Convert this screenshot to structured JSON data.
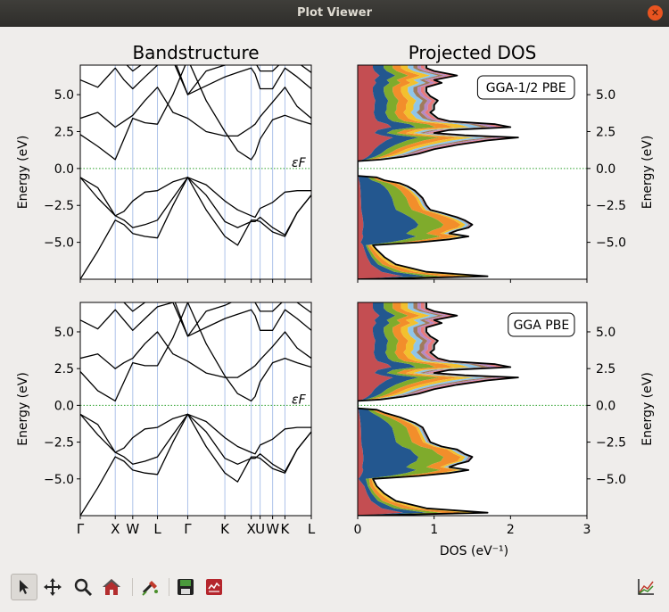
{
  "window": {
    "title": "Plot Viewer",
    "close_icon": "close-icon"
  },
  "chart_data": [
    {
      "type": "line",
      "title": "Bandstructure",
      "ylabel": "Energy (eV)",
      "ylim": [
        -7.5,
        7.0
      ],
      "yticks": [
        "5.0",
        "2.5",
        "0.0",
        "−2.5",
        "−5.0"
      ],
      "yticks_values": [
        5.0,
        2.5,
        0.0,
        -2.5,
        -5.0
      ],
      "kpoint_labels": [
        "Γ",
        "X",
        "W",
        "L",
        "Γ",
        "K",
        "X",
        "U",
        "W",
        "K",
        "L"
      ],
      "kpoint_positions": [
        0.0,
        1.0,
        1.5,
        2.207,
        3.073,
        4.134,
        4.888,
        5.142,
        5.5,
        5.853,
        6.606
      ],
      "fermi_label": "εF",
      "colors": {
        "bands": "#000000",
        "kpoint_lines": "#aec3ea",
        "fermi_line": "#2ca02c"
      },
      "series": [
        {
          "x": [
            0.0,
            0.5,
            1.0,
            1.25,
            1.5,
            1.85,
            2.207,
            2.65,
            3.073,
            3.6,
            4.134,
            4.5,
            4.888,
            5.0,
            5.142,
            5.5,
            5.853,
            6.2,
            6.606
          ],
          "y": [
            -7.5,
            -5.6,
            -3.5,
            -3.8,
            -4.4,
            -4.6,
            -4.7,
            -2.5,
            -0.6,
            -2.8,
            -4.6,
            -5.2,
            -3.5,
            -3.5,
            -3.6,
            -4.3,
            -4.6,
            -3.0,
            -1.8
          ]
        },
        {
          "x": [
            0.0,
            0.5,
            1.0,
            1.25,
            1.5,
            1.85,
            2.207,
            2.65,
            3.073,
            3.6,
            4.134,
            4.5,
            4.888,
            5.0,
            5.142,
            5.5,
            5.853,
            6.2,
            6.606
          ],
          "y": [
            -0.6,
            -2.0,
            -3.2,
            -3.5,
            -4.0,
            -3.8,
            -3.5,
            -2.0,
            -0.6,
            -1.8,
            -3.6,
            -4.0,
            -3.6,
            -3.6,
            -3.3,
            -4.0,
            -4.5,
            -3.0,
            -1.8
          ]
        },
        {
          "x": [
            0.0,
            0.5,
            1.0,
            1.25,
            1.5,
            1.85,
            2.207,
            2.65,
            3.073,
            3.6,
            4.134,
            4.5,
            4.888,
            5.0,
            5.142,
            5.5,
            5.853,
            6.2,
            6.606
          ],
          "y": [
            -0.6,
            -1.3,
            -3.2,
            -2.9,
            -2.2,
            -1.6,
            -1.5,
            -0.9,
            -0.6,
            -1.1,
            -2.2,
            -2.8,
            -3.2,
            -3.3,
            -2.7,
            -2.3,
            -1.6,
            -1.5,
            -1.5
          ]
        },
        {
          "x": [
            0.0,
            0.5,
            1.0,
            1.25,
            1.5,
            1.85,
            2.207,
            2.65,
            3.073,
            3.6,
            4.134,
            4.5,
            4.888,
            5.0,
            5.142,
            5.5,
            5.853,
            6.2,
            6.606
          ],
          "y": [
            2.3,
            1.5,
            0.6,
            2.0,
            3.4,
            3.1,
            3.0,
            5.0,
            7.4,
            4.6,
            2.5,
            1.2,
            0.6,
            1.0,
            2.0,
            3.3,
            3.6,
            3.3,
            3.0
          ]
        },
        {
          "x": [
            0.0,
            0.5,
            1.0,
            1.25,
            1.5,
            1.85,
            2.207,
            2.65,
            3.073,
            3.6,
            4.134,
            4.5,
            4.888,
            5.0,
            5.142,
            5.5,
            5.853,
            6.2,
            6.606
          ],
          "y": [
            3.4,
            3.8,
            2.8,
            3.2,
            3.6,
            4.6,
            5.5,
            3.8,
            3.4,
            2.5,
            2.2,
            2.2,
            2.8,
            3.0,
            3.5,
            4.5,
            5.5,
            4.2,
            3.4
          ]
        },
        {
          "x": [
            0.0,
            0.5,
            1.0,
            1.25,
            1.5,
            1.85,
            2.207,
            2.65,
            3.073,
            3.6,
            4.134,
            4.5,
            4.888,
            5.0,
            5.142,
            5.5,
            5.853,
            6.2,
            6.606
          ],
          "y": [
            6.0,
            5.5,
            6.8,
            6.0,
            5.4,
            6.2,
            7.0,
            7.3,
            5.0,
            5.6,
            6.2,
            6.5,
            6.8,
            6.4,
            5.4,
            5.4,
            6.8,
            6.2,
            5.4
          ]
        },
        {
          "x": [
            0.0,
            0.6,
            1.0,
            1.25,
            1.5,
            1.85,
            2.207,
            2.65,
            3.073,
            3.6,
            4.134,
            4.5,
            4.888,
            5.0,
            5.142,
            5.5,
            5.853,
            6.2,
            6.606
          ],
          "y": [
            7.5,
            7.4,
            7.6,
            7.2,
            6.6,
            7.2,
            7.5,
            7.6,
            5.0,
            6.6,
            7.0,
            7.4,
            7.6,
            7.2,
            6.6,
            6.6,
            7.4,
            7.2,
            6.5
          ]
        }
      ]
    },
    {
      "type": "area",
      "title": "Projected DOS",
      "ylabel": "Energy (eV)",
      "ylim": [
        -7.5,
        7.0
      ],
      "xlim": [
        0,
        3
      ],
      "yticks": [
        "5.0",
        "2.5",
        "0.0",
        "−2.5",
        "−5.0"
      ],
      "yticks_values": [
        5.0,
        2.5,
        0.0,
        -2.5,
        -5.0
      ],
      "annotation": "GGA-1/2 PBE",
      "colors": [
        "#c44e52",
        "#23578f",
        "#7fab2c",
        "#f28e2b",
        "#f2c12e",
        "#8fc5e8",
        "#a07a5c",
        "#b68ac4",
        "#e8797a",
        "#9b9b9b"
      ],
      "total_dos": {
        "energy": [
          -7.5,
          -7.3,
          -7.0,
          -6.5,
          -6.0,
          -5.5,
          -5.2,
          -5.0,
          -4.8,
          -4.6,
          -4.4,
          -4.2,
          -4.0,
          -3.8,
          -3.5,
          -3.3,
          -3.0,
          -2.8,
          -2.5,
          -2.0,
          -1.5,
          -1.2,
          -1.0,
          -0.8,
          -0.6,
          -0.5,
          0.0,
          0.5,
          0.6,
          0.8,
          1.0,
          1.3,
          1.6,
          1.9,
          2.1,
          2.25,
          2.4,
          2.6,
          2.8,
          3.0,
          3.2,
          3.4,
          3.6,
          3.8,
          4.0,
          4.3,
          4.6,
          4.9,
          5.2,
          5.5,
          5.8,
          6.0,
          6.3,
          6.6,
          6.8,
          7.0
        ],
        "dos": [
          0.0,
          1.7,
          0.9,
          0.5,
          0.35,
          0.25,
          0.2,
          0.8,
          1.2,
          1.45,
          1.2,
          1.3,
          1.45,
          1.5,
          1.4,
          1.3,
          1.1,
          0.95,
          0.9,
          0.85,
          0.75,
          0.65,
          0.55,
          0.35,
          0.25,
          0.0,
          0.0,
          0.0,
          0.3,
          0.6,
          0.8,
          1.0,
          1.3,
          1.7,
          2.1,
          1.4,
          1.0,
          1.2,
          2.0,
          1.8,
          1.2,
          1.05,
          1.0,
          0.95,
          1.0,
          1.0,
          1.05,
          0.95,
          0.9,
          0.9,
          1.1,
          1.0,
          1.3,
          1.0,
          0.9,
          0.9
        ]
      }
    },
    {
      "type": "line",
      "title": "",
      "ylabel": "Energy (eV)",
      "ylim": [
        -7.5,
        7.0
      ],
      "yticks": [
        "5.0",
        "2.5",
        "0.0",
        "−2.5",
        "−5.0"
      ],
      "yticks_values": [
        5.0,
        2.5,
        0.0,
        -2.5,
        -5.0
      ],
      "kpoint_labels": [
        "Γ",
        "X",
        "W",
        "L",
        "Γ",
        "K",
        "X",
        "U",
        "W",
        "K",
        "L"
      ],
      "kpoint_positions": [
        0.0,
        1.0,
        1.5,
        2.207,
        3.073,
        4.134,
        4.888,
        5.142,
        5.5,
        5.853,
        6.606
      ],
      "fermi_label": "εF",
      "series": [
        {
          "x": [
            0.0,
            0.5,
            1.0,
            1.25,
            1.5,
            1.85,
            2.207,
            2.65,
            3.073,
            3.6,
            4.134,
            4.5,
            4.888,
            5.0,
            5.142,
            5.5,
            5.853,
            6.2,
            6.606
          ],
          "y": [
            -7.5,
            -5.6,
            -3.5,
            -3.8,
            -4.4,
            -4.6,
            -4.7,
            -2.5,
            -0.6,
            -2.8,
            -4.6,
            -5.2,
            -3.5,
            -3.5,
            -3.6,
            -4.3,
            -4.6,
            -3.0,
            -1.8
          ]
        },
        {
          "x": [
            0.0,
            0.5,
            1.0,
            1.25,
            1.5,
            1.85,
            2.207,
            2.65,
            3.073,
            3.6,
            4.134,
            4.5,
            4.888,
            5.0,
            5.142,
            5.5,
            5.853,
            6.2,
            6.606
          ],
          "y": [
            -0.6,
            -2.0,
            -3.2,
            -3.5,
            -4.0,
            -3.8,
            -3.5,
            -2.0,
            -0.6,
            -1.8,
            -3.6,
            -4.0,
            -3.6,
            -3.6,
            -3.3,
            -4.0,
            -4.5,
            -3.0,
            -1.8
          ]
        },
        {
          "x": [
            0.0,
            0.5,
            1.0,
            1.25,
            1.5,
            1.85,
            2.207,
            2.65,
            3.073,
            3.6,
            4.134,
            4.5,
            4.888,
            5.0,
            5.142,
            5.5,
            5.853,
            6.2,
            6.606
          ],
          "y": [
            -0.6,
            -1.3,
            -3.2,
            -2.9,
            -2.2,
            -1.6,
            -1.5,
            -0.9,
            -0.6,
            -1.1,
            -2.2,
            -2.8,
            -3.2,
            -3.3,
            -2.7,
            -2.3,
            -1.6,
            -1.5,
            -1.5
          ]
        },
        {
          "x": [
            0.0,
            0.5,
            1.0,
            1.25,
            1.5,
            1.85,
            2.207,
            2.65,
            3.073,
            3.6,
            4.134,
            4.5,
            4.888,
            5.0,
            5.142,
            5.5,
            5.853,
            6.2,
            6.606
          ],
          "y": [
            2.3,
            1.0,
            0.3,
            1.6,
            2.9,
            2.7,
            2.7,
            4.6,
            7.0,
            4.2,
            2.0,
            0.8,
            0.3,
            0.6,
            1.6,
            2.9,
            3.2,
            2.9,
            2.6
          ]
        },
        {
          "x": [
            0.0,
            0.5,
            1.0,
            1.25,
            1.5,
            1.85,
            2.207,
            2.65,
            3.073,
            3.6,
            4.134,
            4.5,
            4.888,
            5.0,
            5.142,
            5.5,
            5.853,
            6.2,
            6.606
          ],
          "y": [
            3.2,
            3.5,
            2.5,
            2.9,
            3.2,
            4.2,
            5.0,
            3.5,
            3.0,
            2.2,
            1.9,
            1.9,
            2.5,
            2.7,
            3.1,
            4.0,
            5.0,
            3.9,
            3.2
          ]
        },
        {
          "x": [
            0.0,
            0.5,
            1.0,
            1.25,
            1.5,
            1.85,
            2.207,
            2.65,
            3.073,
            3.6,
            4.134,
            4.5,
            4.888,
            5.0,
            5.142,
            5.5,
            5.853,
            6.2,
            6.606
          ],
          "y": [
            5.8,
            5.2,
            6.5,
            5.8,
            5.1,
            5.9,
            6.7,
            7.0,
            4.7,
            5.3,
            5.9,
            6.2,
            6.5,
            6.1,
            5.1,
            5.1,
            6.5,
            5.9,
            5.1
          ]
        },
        {
          "x": [
            0.0,
            0.6,
            1.0,
            1.25,
            1.5,
            1.85,
            2.207,
            2.65,
            3.073,
            3.6,
            4.134,
            4.5,
            4.888,
            5.0,
            5.142,
            5.5,
            5.853,
            6.2,
            6.606
          ],
          "y": [
            7.3,
            7.2,
            7.4,
            7.0,
            6.4,
            7.0,
            7.3,
            7.4,
            4.7,
            6.4,
            6.8,
            7.2,
            7.4,
            7.0,
            6.4,
            6.4,
            7.2,
            7.0,
            6.3
          ]
        }
      ]
    },
    {
      "type": "area",
      "title": "",
      "xlabel": "DOS (eV⁻¹)",
      "ylabel": "Energy (eV)",
      "ylim": [
        -7.5,
        7.0
      ],
      "xlim": [
        0,
        3
      ],
      "xticks": [
        "0",
        "1",
        "2",
        "3"
      ],
      "xticks_values": [
        0,
        1,
        2,
        3
      ],
      "yticks": [
        "5.0",
        "2.5",
        "0.0",
        "−2.5",
        "−5.0"
      ],
      "yticks_values": [
        5.0,
        2.5,
        0.0,
        -2.5,
        -5.0
      ],
      "annotation": "GGA PBE",
      "total_dos": {
        "energy": [
          -7.5,
          -7.3,
          -7.0,
          -6.5,
          -6.0,
          -5.5,
          -5.0,
          -4.8,
          -4.6,
          -4.4,
          -4.2,
          -4.0,
          -3.8,
          -3.5,
          -3.3,
          -3.0,
          -2.8,
          -2.5,
          -2.0,
          -1.5,
          -1.2,
          -1.0,
          -0.8,
          -0.5,
          -0.3,
          -0.2,
          0.0,
          0.3,
          0.4,
          0.6,
          0.8,
          1.1,
          1.4,
          1.7,
          1.9,
          2.05,
          2.2,
          2.4,
          2.6,
          2.8,
          3.0,
          3.2,
          3.4,
          3.6,
          3.8,
          4.1,
          4.4,
          4.7,
          5.0,
          5.3,
          5.6,
          5.8,
          6.1,
          6.4,
          6.6,
          6.8,
          7.0
        ],
        "dos": [
          0.0,
          1.7,
          0.9,
          0.5,
          0.35,
          0.25,
          0.2,
          0.8,
          1.2,
          1.45,
          1.2,
          1.3,
          1.45,
          1.5,
          1.4,
          1.3,
          1.1,
          0.95,
          0.9,
          0.85,
          0.75,
          0.65,
          0.55,
          0.35,
          0.25,
          0.0,
          0.0,
          0.0,
          0.3,
          0.6,
          0.8,
          1.0,
          1.3,
          1.7,
          2.1,
          1.4,
          1.0,
          1.2,
          2.0,
          1.8,
          1.2,
          1.05,
          1.0,
          0.95,
          1.0,
          1.0,
          1.05,
          0.95,
          0.9,
          0.9,
          1.1,
          1.0,
          1.3,
          1.0,
          0.9,
          0.9,
          0.9
        ]
      }
    }
  ],
  "toolbar": {
    "items": [
      {
        "name": "pointer-button",
        "icon": "pointer-icon",
        "active": true
      },
      {
        "name": "pan-button",
        "icon": "pan-arrows-icon",
        "active": false
      },
      {
        "name": "zoom-button",
        "icon": "magnifier-icon",
        "active": false
      },
      {
        "name": "home-button",
        "icon": "home-icon",
        "active": false
      },
      {
        "name": "configure-button",
        "icon": "configure-icon",
        "active": false
      },
      {
        "name": "save-button",
        "icon": "floppy-disk-icon",
        "active": false
      },
      {
        "name": "edit-figure-button",
        "icon": "edit-figure-icon",
        "active": false
      }
    ],
    "right_icon": "line-chart-icon"
  }
}
